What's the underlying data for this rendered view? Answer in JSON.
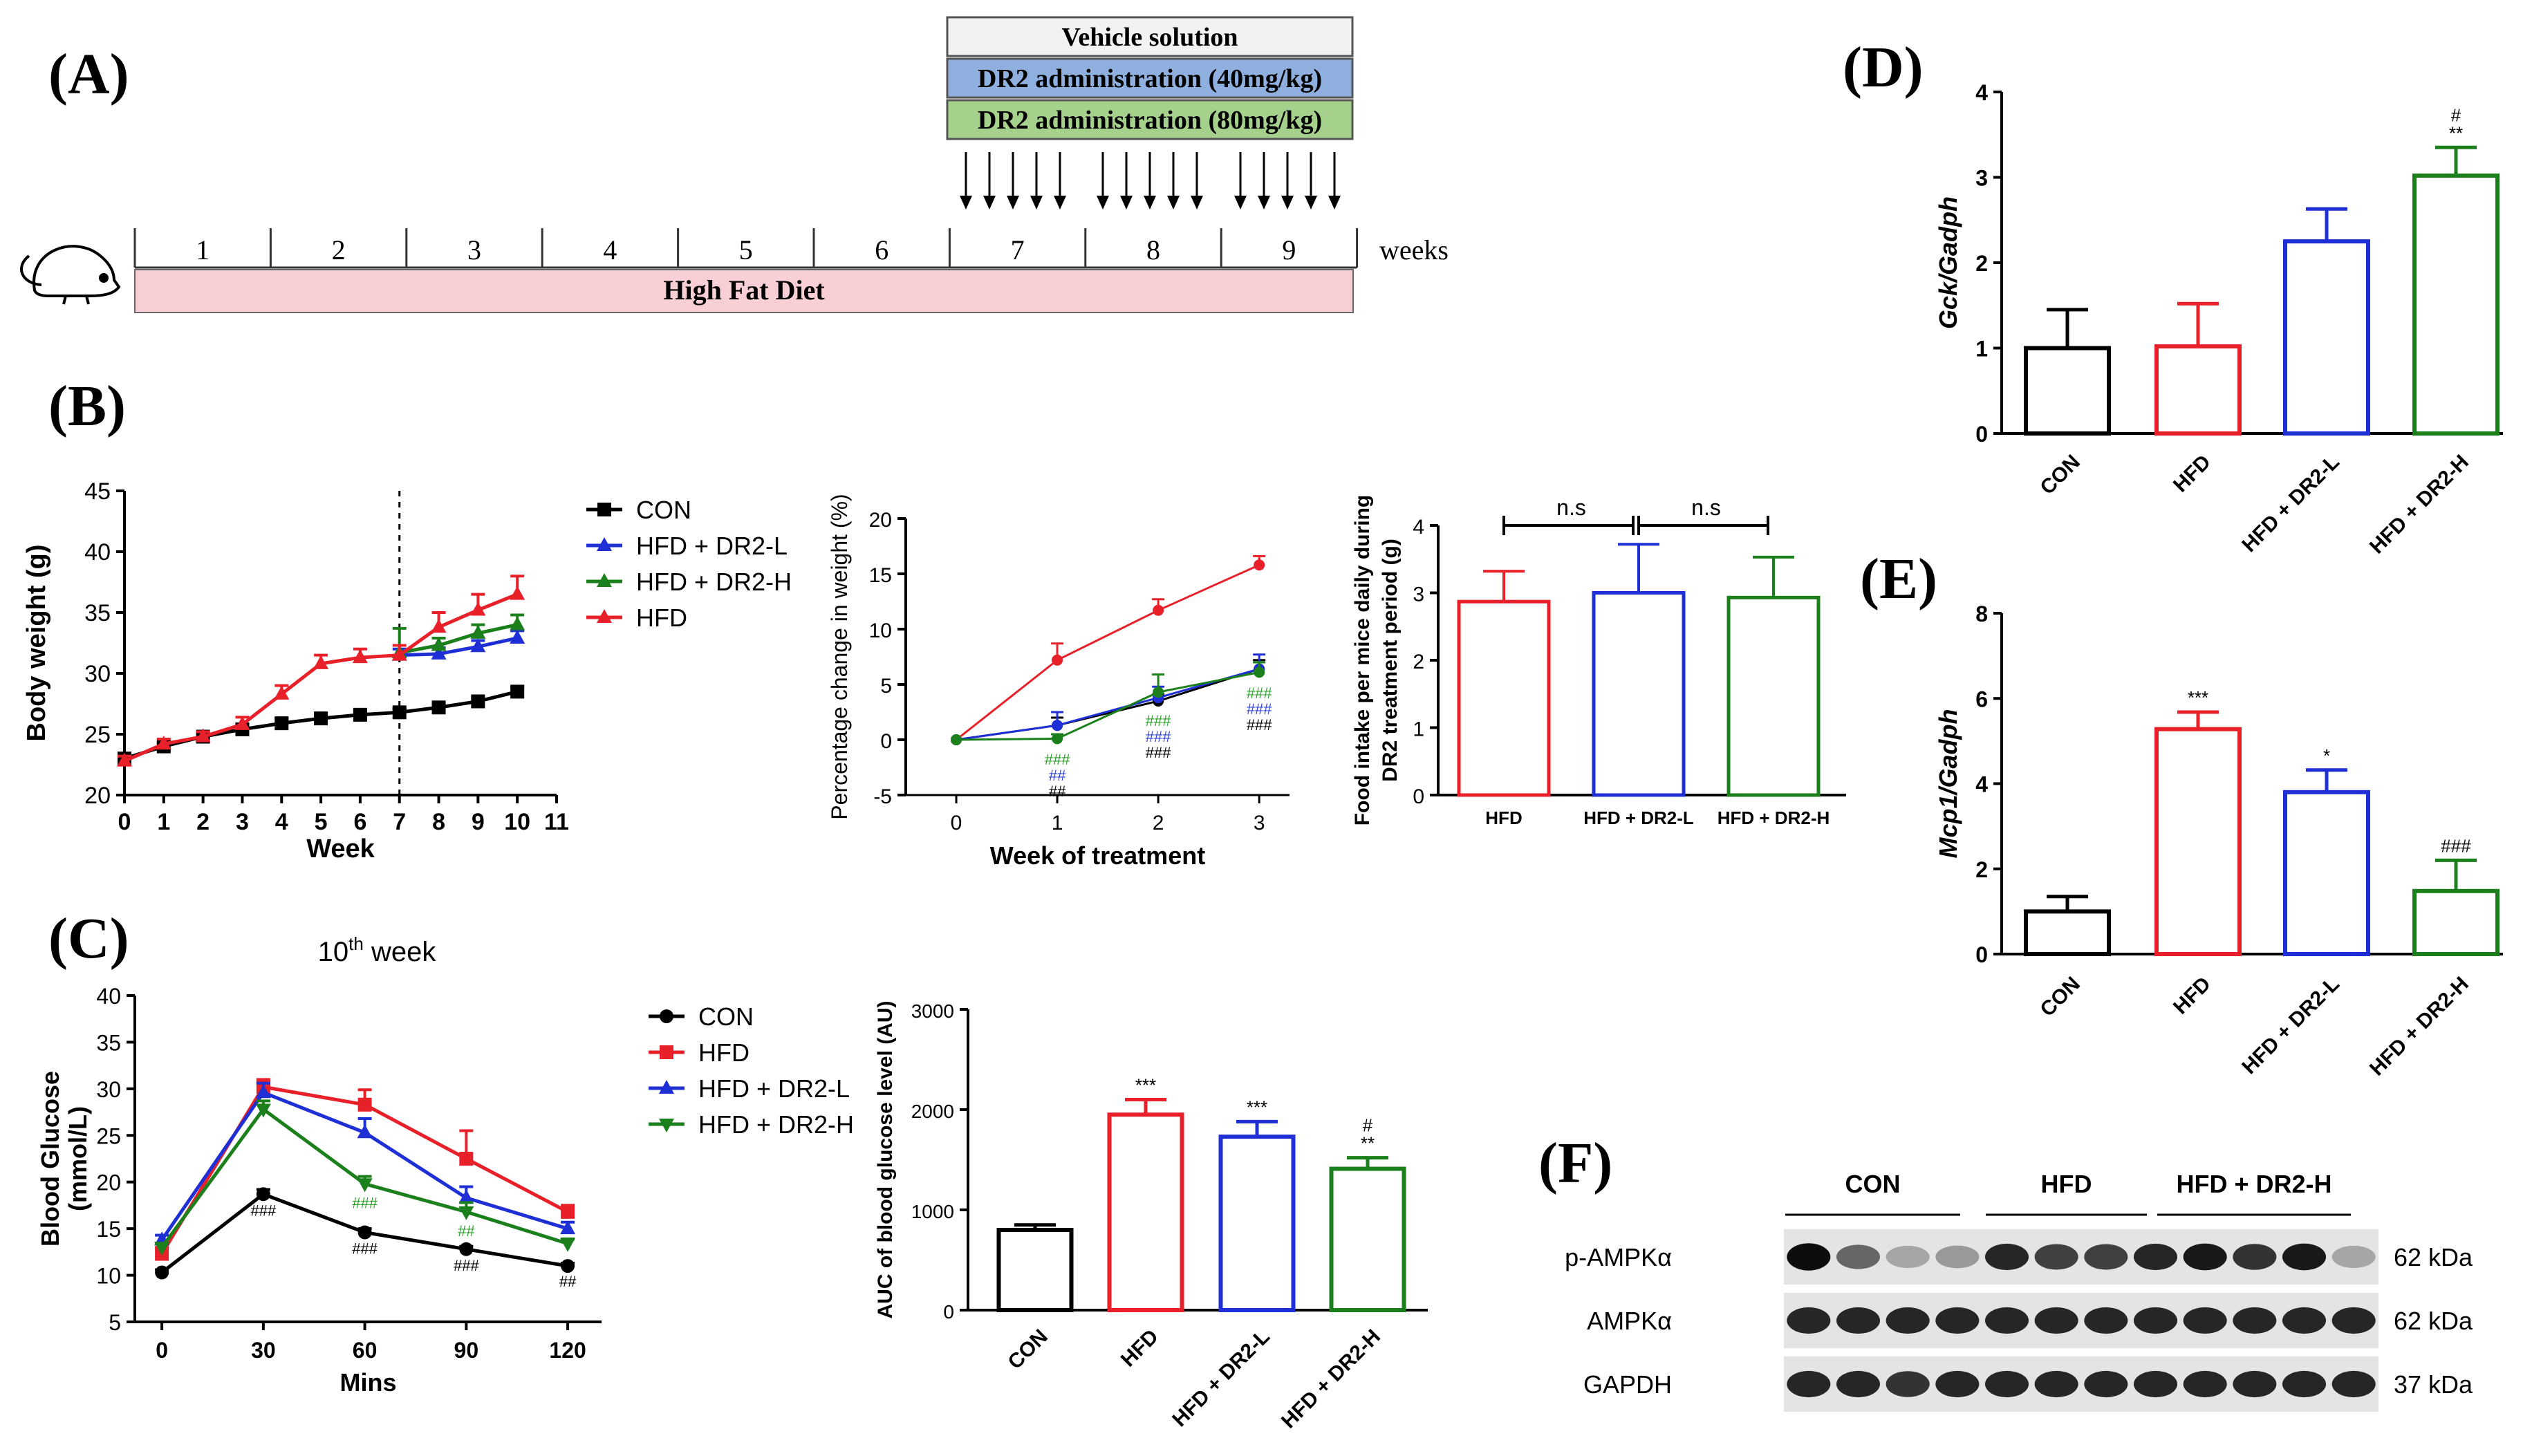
{
  "labels": {
    "A": "(A)",
    "B": "(B)",
    "C": "(C)",
    "D": "(D)",
    "E": "(E)",
    "F": "(F)"
  },
  "timeline": {
    "bars": [
      "Vehicle solution",
      "DR2 administration (40mg/kg)",
      "DR2 administration (80mg/kg)"
    ],
    "bar_colors": [
      "#f2f2f2",
      "#8fb0de",
      "#a6d18c"
    ],
    "weeks": [
      "1",
      "2",
      "3",
      "4",
      "5",
      "6",
      "7",
      "8",
      "9"
    ],
    "unit": "weeks",
    "diet": "High Fat Diet",
    "diet_color": "#f7cfd4",
    "mouse_icon": "mouse-icon",
    "arrow_icon": "down-arrow-icon"
  },
  "colors": {
    "CON": "#000000",
    "HFD": "#e8202a",
    "DR2L": "#1f2fd6",
    "DR2H": "#1b7f1b",
    "green_mark": "#2aa02a",
    "blue_mark": "#2e3fd8"
  },
  "chart_data": [
    {
      "id": "body-weight",
      "type": "line",
      "title": "",
      "xlabel": "Week",
      "ylabel": "Body weight (g)",
      "xlim": [
        0,
        11
      ],
      "ylim": [
        20,
        45
      ],
      "xticks": [
        "0",
        "1",
        "2",
        "3",
        "4",
        "5",
        "6",
        "7",
        "8",
        "9",
        "10",
        "11"
      ],
      "yticks": [
        "20",
        "25",
        "30",
        "35",
        "40",
        "45"
      ],
      "vline_x": 7,
      "legend": [
        "CON",
        "HFD + DR2-L",
        "HFD + DR2-H",
        "HFD"
      ],
      "series": [
        {
          "name": "CON",
          "color": "#000000",
          "marker": "square",
          "x": [
            0,
            1,
            2,
            3,
            4,
            5,
            6,
            7,
            8,
            9,
            10
          ],
          "values": [
            23,
            24,
            24.8,
            25.4,
            25.9,
            26.3,
            26.6,
            26.8,
            27.2,
            27.7,
            28.5
          ],
          "err": [
            0.3,
            0.3,
            0.3,
            0.4,
            0.4,
            0.3,
            0.3,
            0.3,
            0.3,
            0.3,
            0.4
          ]
        },
        {
          "name": "HFD + DR2-L",
          "color": "#1f2fd6",
          "marker": "triangle",
          "x": [
            7,
            8,
            9,
            10
          ],
          "values": [
            31.5,
            31.6,
            32.2,
            32.9
          ],
          "err": [
            0.5,
            0.5,
            0.5,
            0.6
          ]
        },
        {
          "name": "HFD + DR2-H",
          "color": "#1b7f1b",
          "marker": "triangle",
          "x": [
            7,
            8,
            9,
            10
          ],
          "values": [
            31.7,
            32.3,
            33.3,
            34
          ],
          "err": [
            2,
            0.6,
            0.7,
            0.8
          ]
        },
        {
          "name": "HFD",
          "color": "#e8202a",
          "marker": "triangle",
          "x": [
            0,
            1,
            2,
            3,
            4,
            5,
            6,
            7,
            8,
            9,
            10
          ],
          "values": [
            22.8,
            24.2,
            24.8,
            25.8,
            28.3,
            30.8,
            31.3,
            31.5,
            33.8,
            35.2,
            36.5
          ],
          "err": [
            0.4,
            0.4,
            0.4,
            0.6,
            0.7,
            0.7,
            0.7,
            0.8,
            1.2,
            1.3,
            1.5
          ]
        }
      ]
    },
    {
      "id": "pct-weight",
      "type": "line",
      "xlabel": "Week of treatment",
      "ylabel": "Percentage change in weight (%)",
      "xlim": [
        -0.5,
        3.3
      ],
      "ylim": [
        -5,
        20
      ],
      "xticks": [
        "0",
        "1",
        "2",
        "3"
      ],
      "yticks": [
        "-5",
        "0",
        "5",
        "10",
        "15",
        "20"
      ],
      "series": [
        {
          "name": "HFD",
          "color": "#e8202a",
          "x": [
            0,
            1,
            2,
            3
          ],
          "values": [
            0,
            7.2,
            11.7,
            15.8
          ],
          "err": [
            0,
            1.5,
            1,
            0.8
          ]
        },
        {
          "name": "CON",
          "color": "#000000",
          "x": [
            0,
            1,
            2,
            3
          ],
          "values": [
            0,
            1.3,
            3.5,
            6.4
          ],
          "err": [
            0,
            0.7,
            0.6,
            0.8
          ]
        },
        {
          "name": "HFD + DR2-L",
          "color": "#1f2fd6",
          "x": [
            0,
            1,
            2,
            3
          ],
          "values": [
            0,
            1.3,
            3.8,
            6.4
          ],
          "err": [
            0,
            1.2,
            1,
            1.3
          ]
        },
        {
          "name": "HFD + DR2-H",
          "color": "#1b7f1b",
          "x": [
            0,
            1,
            2,
            3
          ],
          "values": [
            0,
            0.1,
            4.3,
            6.1
          ],
          "err": [
            0,
            0.4,
            1.6,
            0.9
          ]
        }
      ],
      "annotations": [
        {
          "x": 1,
          "lines": [
            [
              "###",
              "green"
            ],
            [
              "##",
              "blue"
            ],
            [
              "##",
              "black"
            ]
          ]
        },
        {
          "x": 2,
          "lines": [
            [
              "###",
              "green"
            ],
            [
              "###",
              "blue"
            ],
            [
              "###",
              "black"
            ]
          ]
        },
        {
          "x": 3,
          "lines": [
            [
              "###",
              "green"
            ],
            [
              "###",
              "blue"
            ],
            [
              "###",
              "black"
            ]
          ]
        }
      ]
    },
    {
      "id": "food-intake",
      "type": "bar",
      "ylabel_lines": [
        "Food intake per mice daily during",
        "DR2 treatment period  (g)"
      ],
      "ylim": [
        0,
        4
      ],
      "yticks": [
        "0",
        "1",
        "2",
        "3",
        "4"
      ],
      "categories": [
        "HFD",
        "HFD + DR2-L",
        "HFD + DR2-H"
      ],
      "values": [
        2.87,
        3.0,
        2.93
      ],
      "err": [
        0.45,
        0.72,
        0.6
      ],
      "colors": [
        "#e8202a",
        "#1f2fd6",
        "#1b7f1b"
      ],
      "sig": [
        "n.s",
        "n.s"
      ]
    },
    {
      "id": "glucose",
      "type": "line",
      "title_main": "10",
      "title_sup": "th",
      "title_tail": " week",
      "xlabel": "Mins",
      "ylabel_lines": [
        "Blood Glucose",
        "(mmol/L)"
      ],
      "xlim": [
        -8,
        130
      ],
      "ylim": [
        5,
        40
      ],
      "xticks": [
        "0",
        "30",
        "60",
        "90",
        "120"
      ],
      "yticks": [
        "5",
        "10",
        "15",
        "20",
        "25",
        "30",
        "35",
        "40"
      ],
      "legend": [
        "CON",
        "HFD",
        "HFD + DR2-L",
        "HFD + DR2-H"
      ],
      "series": [
        {
          "name": "CON",
          "color": "#000000",
          "marker": "circle",
          "x": [
            0,
            30,
            60,
            90,
            120
          ],
          "values": [
            10.3,
            18.7,
            14.6,
            12.8,
            11
          ],
          "err": [
            0.3,
            0.5,
            0.4,
            0.3,
            0.3
          ]
        },
        {
          "name": "HFD",
          "color": "#e8202a",
          "marker": "square",
          "x": [
            0,
            30,
            60,
            90,
            120
          ],
          "values": [
            12.3,
            30.2,
            28.3,
            22.5,
            16.8
          ],
          "err": [
            0.7,
            0.8,
            1.6,
            3,
            0.7
          ]
        },
        {
          "name": "HFD + DR2-L",
          "color": "#1f2fd6",
          "marker": "triangle",
          "x": [
            0,
            30,
            60,
            90,
            120
          ],
          "values": [
            13.8,
            29.6,
            25.3,
            18.3,
            15
          ],
          "err": [
            0.5,
            1,
            1.5,
            1.2,
            0.7
          ]
        },
        {
          "name": "HFD + DR2-H",
          "color": "#1b7f1b",
          "marker": "triangle-down",
          "x": [
            0,
            30,
            60,
            90,
            120
          ],
          "values": [
            13,
            27.8,
            19.8,
            16.8,
            13.4
          ],
          "err": [
            0.4,
            0.9,
            0.8,
            1,
            0.5
          ]
        }
      ],
      "annotations": [
        {
          "x": 30,
          "y": 16.4,
          "text": "###",
          "color": "black"
        },
        {
          "x": 60,
          "y": 17.2,
          "text": "###",
          "color": "green"
        },
        {
          "x": 60,
          "y": 12.3,
          "text": "###",
          "color": "black"
        },
        {
          "x": 90,
          "y": 14.2,
          "text": "##",
          "color": "green"
        },
        {
          "x": 90,
          "y": 10.5,
          "text": "###",
          "color": "black"
        },
        {
          "x": 120,
          "y": 8.8,
          "text": "##",
          "color": "black"
        }
      ]
    },
    {
      "id": "auc",
      "type": "bar",
      "ylabel": "AUC of blood glucose level (AU)",
      "ylim": [
        0,
        3000
      ],
      "yticks": [
        "0",
        "1000",
        "2000",
        "3000"
      ],
      "categories": [
        "CON",
        "HFD",
        "HFD + DR2-L",
        "HFD + DR2-H"
      ],
      "values": [
        800,
        1950,
        1730,
        1410
      ],
      "err": [
        50,
        150,
        150,
        110
      ],
      "colors": [
        "#000000",
        "#e8202a",
        "#1f2fd6",
        "#1b7f1b"
      ],
      "sig": [
        [],
        [
          "***"
        ],
        [
          "***"
        ],
        [
          "#",
          "**"
        ]
      ]
    },
    {
      "id": "gck",
      "type": "bar",
      "ylabel_italic": "Gck/Gadph",
      "ylim": [
        0,
        4
      ],
      "yticks": [
        "0",
        "1",
        "2",
        "3",
        "4"
      ],
      "categories": [
        "CON",
        "HFD",
        "HFD + DR2-L",
        "HFD + DR2-H"
      ],
      "values": [
        1.0,
        1.02,
        2.25,
        3.02
      ],
      "err": [
        0.45,
        0.5,
        0.38,
        0.33
      ],
      "colors": [
        "#000000",
        "#e8202a",
        "#1f2fd6",
        "#1b7f1b"
      ],
      "sig": [
        [],
        [],
        [],
        [
          "#",
          "**"
        ]
      ]
    },
    {
      "id": "mcp1",
      "type": "bar",
      "ylabel_italic": "Mcp1/Gadph",
      "ylim": [
        0,
        8
      ],
      "yticks": [
        "0",
        "2",
        "4",
        "6",
        "8"
      ],
      "categories": [
        "CON",
        "HFD",
        "HFD + DR2-L",
        "HFD + DR2-H"
      ],
      "values": [
        1.0,
        5.28,
        3.8,
        1.48
      ],
      "err": [
        0.35,
        0.4,
        0.52,
        0.72
      ],
      "colors": [
        "#000000",
        "#e8202a",
        "#1f2fd6",
        "#1b7f1b"
      ],
      "sig": [
        [],
        [
          "***"
        ],
        [
          "*"
        ],
        [
          "###"
        ]
      ]
    }
  ],
  "blot": {
    "groups": [
      "CON",
      "HFD",
      "HFD + DR2-H"
    ],
    "rows": [
      {
        "name": "p-AMPKα",
        "kda": "62 kDa",
        "intensity": [
          0.95,
          0.6,
          0.35,
          0.4,
          0.85,
          0.75,
          0.75,
          0.85,
          0.9,
          0.8,
          0.9,
          0.35
        ]
      },
      {
        "name": "AMPKα",
        "kda": "62 kDa",
        "intensity": [
          0.85,
          0.85,
          0.85,
          0.85,
          0.85,
          0.85,
          0.85,
          0.85,
          0.85,
          0.85,
          0.85,
          0.85
        ]
      },
      {
        "name": "GAPDH",
        "kda": "37 kDa",
        "intensity": [
          0.85,
          0.85,
          0.8,
          0.85,
          0.85,
          0.85,
          0.85,
          0.85,
          0.85,
          0.85,
          0.85,
          0.85
        ]
      }
    ]
  }
}
